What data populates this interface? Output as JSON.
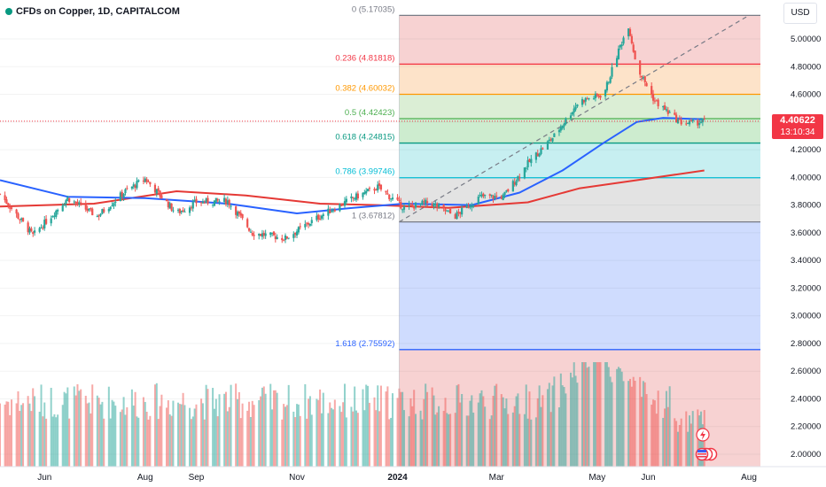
{
  "header": {
    "title": "CFDs on Copper, 1D, CAPITALCOM",
    "currency": "USD"
  },
  "last_price": {
    "value": "4.40622",
    "countdown": "13:10:34"
  },
  "colors": {
    "up": "#26a69a",
    "down": "#ef5350",
    "ma_fast": "#2962ff",
    "ma_slow": "#e53935",
    "last": "#f23645"
  },
  "chart_data": {
    "type": "candlestick",
    "ylim": [
      1.92,
      5.18
    ],
    "y_ticks": [
      "5.00000",
      "4.80000",
      "4.60000",
      "4.40000",
      "4.20000",
      "4.00000",
      "3.80000",
      "3.60000",
      "3.40000",
      "3.20000",
      "3.00000",
      "2.80000",
      "2.60000",
      "2.40000",
      "2.20000",
      "2.00000"
    ],
    "y_tick_values": [
      5.0,
      4.8,
      4.6,
      4.4,
      4.2,
      4.0,
      3.8,
      3.6,
      3.4,
      3.2,
      3.0,
      2.8,
      2.6,
      2.4,
      2.2,
      2.0
    ],
    "x_ticks": [
      {
        "label": "Jun",
        "date": "2023-06-01"
      },
      {
        "label": "Aug",
        "date": "2023-08-01"
      },
      {
        "label": "Sep",
        "date": "2023-09-01"
      },
      {
        "label": "Nov",
        "date": "2023-11-01"
      },
      {
        "label": "2024",
        "date": "2024-01-01"
      },
      {
        "label": "Mar",
        "date": "2024-03-01"
      },
      {
        "label": "May",
        "date": "2024-05-01"
      },
      {
        "label": "Jun",
        "date": "2024-06-01"
      },
      {
        "label": "Aug",
        "date": "2024-08-01"
      }
    ],
    "close_path": [
      {
        "date": "2023-05-05",
        "price": 3.88
      },
      {
        "date": "2023-05-25",
        "price": 3.58
      },
      {
        "date": "2023-06-15",
        "price": 3.85
      },
      {
        "date": "2023-07-03",
        "price": 3.72
      },
      {
        "date": "2023-07-20",
        "price": 3.9
      },
      {
        "date": "2023-08-01",
        "price": 3.99
      },
      {
        "date": "2023-08-20",
        "price": 3.74
      },
      {
        "date": "2023-09-01",
        "price": 3.82
      },
      {
        "date": "2023-09-20",
        "price": 3.83
      },
      {
        "date": "2023-10-05",
        "price": 3.6
      },
      {
        "date": "2023-10-25",
        "price": 3.56
      },
      {
        "date": "2023-11-15",
        "price": 3.72
      },
      {
        "date": "2023-12-05",
        "price": 3.85
      },
      {
        "date": "2023-12-20",
        "price": 3.93
      },
      {
        "date": "2024-01-05",
        "price": 3.78
      },
      {
        "date": "2024-01-20",
        "price": 3.82
      },
      {
        "date": "2024-02-05",
        "price": 3.72
      },
      {
        "date": "2024-02-20",
        "price": 3.86
      },
      {
        "date": "2024-03-05",
        "price": 3.86
      },
      {
        "date": "2024-03-20",
        "price": 4.1
      },
      {
        "date": "2024-04-05",
        "price": 4.3
      },
      {
        "date": "2024-04-20",
        "price": 4.55
      },
      {
        "date": "2024-05-05",
        "price": 4.6
      },
      {
        "date": "2024-05-15",
        "price": 4.95
      },
      {
        "date": "2024-05-20",
        "price": 5.1
      },
      {
        "date": "2024-05-25",
        "price": 4.8
      },
      {
        "date": "2024-06-05",
        "price": 4.55
      },
      {
        "date": "2024-06-20",
        "price": 4.4
      },
      {
        "date": "2024-06-28",
        "price": 4.39
      },
      {
        "date": "2024-07-05",
        "price": 4.41
      }
    ],
    "ma_fast": [
      {
        "date": "2023-05-05",
        "price": 3.98
      },
      {
        "date": "2023-06-15",
        "price": 3.86
      },
      {
        "date": "2023-08-01",
        "price": 3.85
      },
      {
        "date": "2023-09-20",
        "price": 3.81
      },
      {
        "date": "2023-11-01",
        "price": 3.74
      },
      {
        "date": "2023-12-05",
        "price": 3.78
      },
      {
        "date": "2024-01-05",
        "price": 3.81
      },
      {
        "date": "2024-02-15",
        "price": 3.8
      },
      {
        "date": "2024-03-15",
        "price": 3.89
      },
      {
        "date": "2024-04-10",
        "price": 4.05
      },
      {
        "date": "2024-05-05",
        "price": 4.25
      },
      {
        "date": "2024-05-25",
        "price": 4.4
      },
      {
        "date": "2024-06-10",
        "price": 4.43
      },
      {
        "date": "2024-07-05",
        "price": 4.42
      }
    ],
    "ma_slow": [
      {
        "date": "2023-05-05",
        "price": 3.79
      },
      {
        "date": "2023-07-01",
        "price": 3.81
      },
      {
        "date": "2023-08-20",
        "price": 3.9
      },
      {
        "date": "2023-10-01",
        "price": 3.87
      },
      {
        "date": "2023-11-15",
        "price": 3.81
      },
      {
        "date": "2023-12-20",
        "price": 3.8
      },
      {
        "date": "2024-02-01",
        "price": 3.78
      },
      {
        "date": "2024-03-20",
        "price": 3.82
      },
      {
        "date": "2024-04-20",
        "price": 3.92
      },
      {
        "date": "2024-05-25",
        "price": 3.98
      },
      {
        "date": "2024-07-05",
        "price": 4.05
      }
    ],
    "fibonacci": {
      "start_date": "2024-01-02",
      "end_date": "2024-08-01",
      "levels": [
        {
          "ratio": "0",
          "price": 5.17035,
          "label": "0 (5.17035)",
          "line": "#787b86",
          "fill": "#f7d2d2"
        },
        {
          "ratio": "0.236",
          "price": 4.81818,
          "label": "0.236 (4.81818)",
          "line": "#f23645",
          "fill": "#fde3c9"
        },
        {
          "ratio": "0.382",
          "price": 4.60032,
          "label": "0.382 (4.60032)",
          "line": "#ff9800",
          "fill": "#dbeed5"
        },
        {
          "ratio": "0.5",
          "price": 4.42423,
          "label": "0.5 (4.42423)",
          "line": "#4caf50",
          "fill": "#cdeccf"
        },
        {
          "ratio": "0.618",
          "price": 4.24815,
          "label": "0.618 (4.24815)",
          "line": "#089981",
          "fill": "#c7eff1"
        },
        {
          "ratio": "0.786",
          "price": 3.99746,
          "label": "0.786 (3.99746)",
          "line": "#00bcd4",
          "fill": "#e3e3e3"
        },
        {
          "ratio": "1",
          "price": 3.67812,
          "label": "1 (3.67812)",
          "line": "#787b86",
          "fill": "#cfdcfe"
        },
        {
          "ratio": "1.618",
          "price": 2.75592,
          "label": "1.618 (2.75592)",
          "line": "#2962ff",
          "fill": "#f7d2d2"
        }
      ]
    },
    "trendline": [
      {
        "date": "2024-01-02",
        "price": 3.67812
      },
      {
        "date": "2024-08-01",
        "price": 5.17035
      }
    ],
    "volume_max_date": "2024-05-01"
  }
}
